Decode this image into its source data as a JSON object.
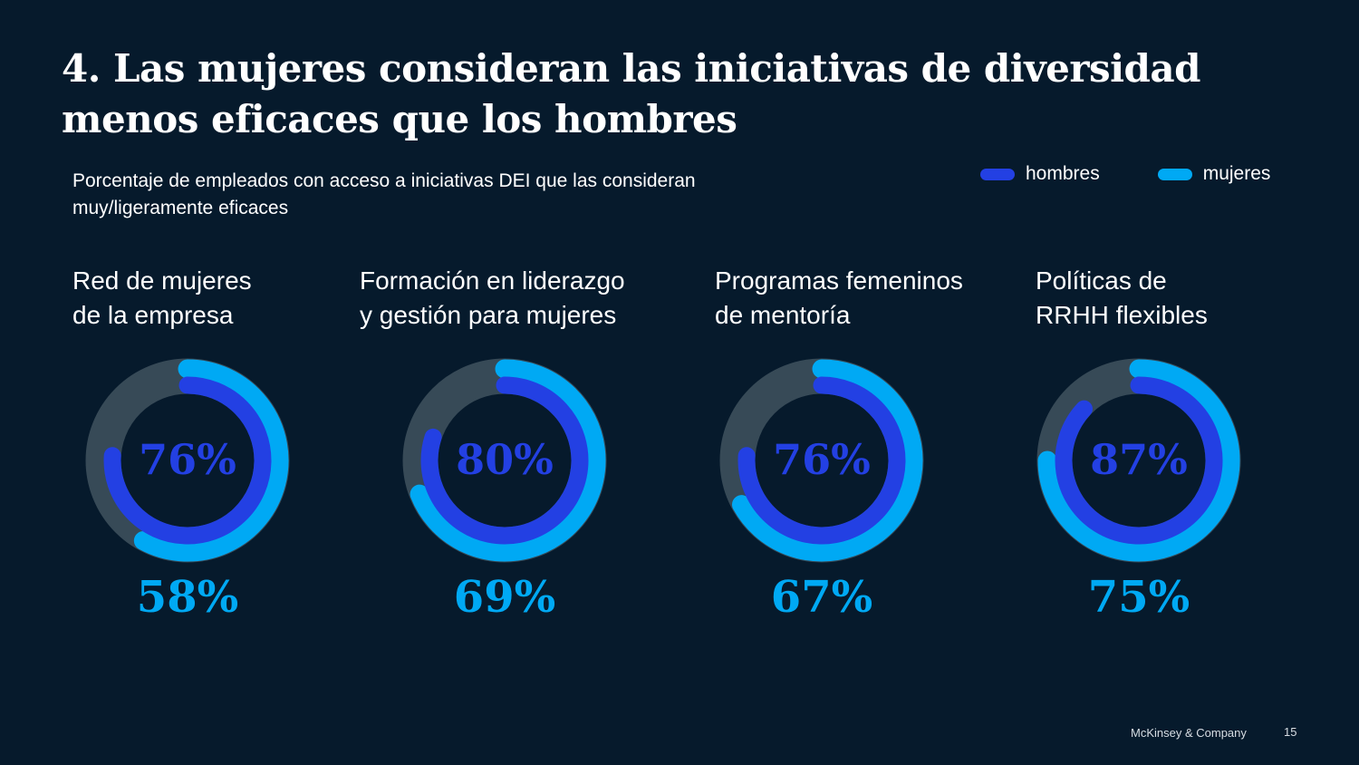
{
  "title": "4. Las mujeres consideran las iniciativas de diversidad menos eficaces que los hombres",
  "subtitle": "Porcentaje de empleados  con acceso a iniciativas DEI que las consideran muy/ligeramente  eficaces",
  "colors": {
    "background": "#061a2c",
    "hombres": "#2340e3",
    "mujeres": "#00a9f4",
    "track": "#374a57"
  },
  "legend": [
    {
      "label": "hombres",
      "color": "#2340e3"
    },
    {
      "label": "mujeres",
      "color": "#00a9f4"
    }
  ],
  "chart_data": {
    "type": "donut",
    "title": "4. Las mujeres consideran las iniciativas de diversidad menos eficaces que los hombres",
    "subtitle": "Porcentaje de empleados con acceso a iniciativas DEI que las consideran muy/ligeramente eficaces",
    "unit": "%",
    "range": [
      0,
      100
    ],
    "legend_position": "top-right",
    "categories": [
      "Red de mujeres de la empresa",
      "Formación en liderazgo y gestión para mujeres",
      "Programas femeninos de mentoría",
      "Políticas de RRHH flexibles"
    ],
    "category_lines": [
      [
        "Red de mujeres",
        "de la empresa"
      ],
      [
        "Formación en liderazgo",
        "y gestión para mujeres"
      ],
      [
        "Programas femeninos",
        "de mentoría"
      ],
      [
        "Políticas de",
        "RRHH flexibles"
      ]
    ],
    "series": [
      {
        "name": "hombres",
        "values": [
          76,
          80,
          76,
          87
        ],
        "labels": [
          "76%",
          "80%",
          "76%",
          "87%"
        ]
      },
      {
        "name": "mujeres",
        "values": [
          58,
          69,
          67,
          75
        ],
        "labels": [
          "58%",
          "69%",
          "67%",
          "75%"
        ]
      }
    ]
  },
  "footer": {
    "brand": "McKinsey & Company",
    "page": "15"
  }
}
